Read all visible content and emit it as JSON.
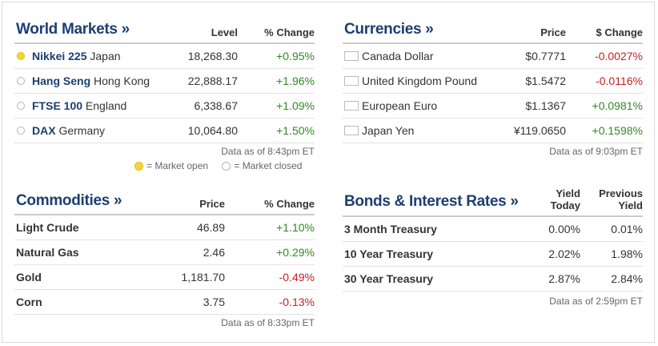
{
  "world_markets": {
    "title": "World Markets »",
    "col_level": "Level",
    "col_change": "% Change",
    "rows": [
      {
        "index": "Nikkei 225",
        "region": "Japan",
        "level": "18,268.30",
        "change": "+0.95%",
        "status": "open"
      },
      {
        "index": "Hang Seng",
        "region": "Hong Kong",
        "level": "22,888.17",
        "change": "+1.96%",
        "status": "closed"
      },
      {
        "index": "FTSE 100",
        "region": "England",
        "level": "6,338.67",
        "change": "+1.09%",
        "status": "closed"
      },
      {
        "index": "DAX",
        "region": "Germany",
        "level": "10,064.80",
        "change": "+1.50%",
        "status": "closed"
      }
    ],
    "asof": "Data as of 8:43pm ET",
    "legend_open": "= Market open",
    "legend_closed": "= Market closed"
  },
  "currencies": {
    "title": "Currencies »",
    "col_price": "Price",
    "col_change": "$ Change",
    "rows": [
      {
        "flag": "canada-flag-icon",
        "name": "Canada Dollar",
        "price": "$0.7771",
        "change": "-0.0027%"
      },
      {
        "flag": "uk-flag-icon",
        "name": "United Kingdom Pound",
        "price": "$1.5472",
        "change": "-0.0116%"
      },
      {
        "flag": "eu-flag-icon",
        "name": "European Euro",
        "price": "$1.1367",
        "change": "+0.0981%"
      },
      {
        "flag": "japan-flag-icon",
        "name": "Japan Yen",
        "price": "¥119.0650",
        "change": "+0.1598%"
      }
    ],
    "asof": "Data as of 9:03pm ET"
  },
  "commodities": {
    "title": "Commodities »",
    "col_price": "Price",
    "col_change": "% Change",
    "rows": [
      {
        "name": "Light Crude",
        "price": "46.89",
        "change": "+1.10%"
      },
      {
        "name": "Natural Gas",
        "price": "2.46",
        "change": "+0.29%"
      },
      {
        "name": "Gold",
        "price": "1,181.70",
        "change": "-0.49%"
      },
      {
        "name": "Corn",
        "price": "3.75",
        "change": "-0.13%"
      }
    ],
    "asof": "Data as of 8:33pm ET"
  },
  "bonds": {
    "title": "Bonds & Interest Rates »",
    "col_yield": "Yield Today",
    "col_prev": "Previous Yield",
    "rows": [
      {
        "name": "3 Month Treasury",
        "yield": "0.00%",
        "prev": "0.01%"
      },
      {
        "name": "10 Year Treasury",
        "yield": "2.02%",
        "prev": "1.98%"
      },
      {
        "name": "30 Year Treasury",
        "yield": "2.87%",
        "prev": "2.84%"
      }
    ],
    "asof": "Data as of 2:59pm ET"
  },
  "colors": {
    "title": "#1d3e72",
    "positive": "#2e8b1f",
    "negative": "#c81e1e",
    "market_open": "#f0d830"
  }
}
